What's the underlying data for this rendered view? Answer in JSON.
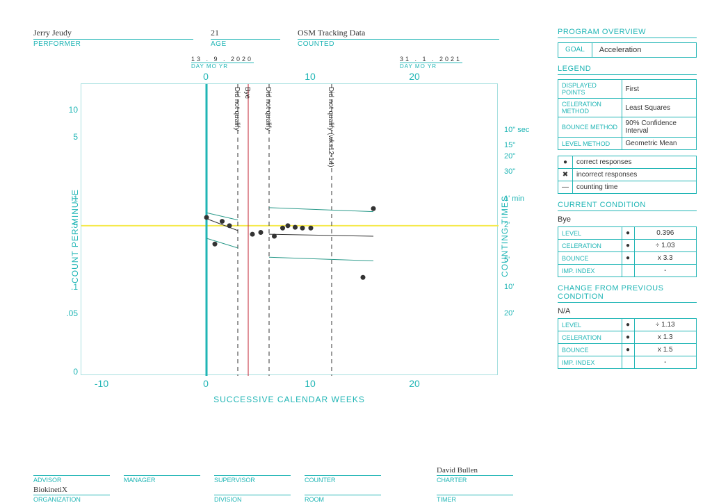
{
  "header": {
    "performer": {
      "value": "Jerry Jeudy",
      "label": "PERFORMER"
    },
    "age": {
      "value": "21",
      "label": "AGE"
    },
    "counted": {
      "value": "OSM Tracking Data",
      "label": "COUNTED"
    }
  },
  "sidebar": {
    "program_overview": "PROGRAM OVERVIEW",
    "goal_label": "GOAL",
    "goal_value": "Acceleration",
    "legend_title": "LEGEND",
    "legend_rows": [
      {
        "k": "DISPLAYED POINTS",
        "v": "First"
      },
      {
        "k": "CELERATION METHOD",
        "v": "Least Squares"
      },
      {
        "k": "BOUNCE METHOD",
        "v": "90% Confidence Interval"
      },
      {
        "k": "LEVEL METHOD",
        "v": "Geometric Mean"
      }
    ],
    "symbol_rows": [
      {
        "sym": "●",
        "v": "correct responses"
      },
      {
        "sym": "✖",
        "v": "incorrect responses"
      },
      {
        "sym": "—",
        "v": "counting time"
      }
    ],
    "cc_title": "CURRENT CONDITION",
    "cc_name": "Bye",
    "cc_rows": [
      {
        "k": "LEVEL",
        "sym": "●",
        "v": "0.396"
      },
      {
        "k": "CELERATION",
        "sym": "●",
        "v": "÷ 1.03"
      },
      {
        "k": "BOUNCE",
        "sym": "●",
        "v": "x 3.3"
      },
      {
        "k": "IMP. INDEX",
        "sym": "",
        "v": "-"
      }
    ],
    "change_title": "CHANGE FROM PREVIOUS CONDITION",
    "change_name": "N/A",
    "change_rows": [
      {
        "k": "LEVEL",
        "sym": "●",
        "v": "÷ 1.13"
      },
      {
        "k": "CELERATION",
        "sym": "●",
        "v": "x 1.3"
      },
      {
        "k": "BOUNCE",
        "sym": "●",
        "v": "x 1.5"
      },
      {
        "k": "IMP. INDEX",
        "sym": "",
        "v": "-"
      }
    ]
  },
  "footer": {
    "row1": [
      {
        "l": "ADVISOR",
        "v": ""
      },
      {
        "l": "MANAGER",
        "v": ""
      },
      {
        "l": "SUPERVISOR",
        "v": ""
      },
      {
        "l": "COUNTER",
        "v": ""
      },
      {
        "l": "CHARTER",
        "v": "David Bullen"
      }
    ],
    "row2": [
      {
        "l": "ORGANIZATION",
        "v": "BiokinetiX"
      },
      {
        "l": "",
        "v": ""
      },
      {
        "l": "DIVISION",
        "v": ""
      },
      {
        "l": "ROOM",
        "v": ""
      },
      {
        "l": "TIMER",
        "v": ""
      }
    ]
  },
  "chart": {
    "y_label": "COUNT PER MINUTE",
    "y2_label": "COUNTING TIMES",
    "x_label": "SUCCESSIVE CALENDAR WEEKS",
    "x_min": -12,
    "x_max": 28,
    "x_ticks": [
      {
        "x": -10,
        "l": "-10"
      },
      {
        "x": 0,
        "l": "0"
      },
      {
        "x": 10,
        "l": "10"
      },
      {
        "x": 20,
        "l": "20"
      }
    ],
    "y_ticks": [
      {
        "y": 0.01,
        "l": "0"
      },
      {
        "y": 0.05,
        "l": ".05"
      },
      {
        "y": 0.1,
        "l": ".1"
      },
      {
        "y": 0.5,
        "l": ".5"
      },
      {
        "y": 1,
        "l": "1"
      },
      {
        "y": 5,
        "l": "5"
      },
      {
        "y": 10,
        "l": "10"
      }
    ],
    "y2_ticks": [
      {
        "y": 6,
        "l": "10\" sec"
      },
      {
        "y": 4,
        "l": "15\""
      },
      {
        "y": 3,
        "l": "20\""
      },
      {
        "y": 2,
        "l": "30\""
      },
      {
        "y": 1,
        "l": "1' min"
      },
      {
        "y": 0.5,
        "l": "2'"
      },
      {
        "y": 0.2,
        "l": "5'"
      },
      {
        "y": 0.1,
        "l": "10'"
      },
      {
        "y": 0.05,
        "l": "20'"
      }
    ],
    "log_min": 0.01,
    "log_max": 20,
    "dates": [
      {
        "x": 0,
        "d": "13 . 9 . 2020",
        "u": "DAY   MO      YR"
      },
      {
        "x": 20,
        "d": "31 . 1 . 2021",
        "u": "DAY   MO      YR"
      }
    ],
    "phase_lines": [
      {
        "x": 0,
        "color": "#1fb5b5",
        "w": 3,
        "dash": false
      },
      {
        "x": 3,
        "color": "#333",
        "w": 1,
        "dash": true,
        "label": "Did not qualify"
      },
      {
        "x": 4,
        "color": "#c02030",
        "w": 1,
        "dash": false,
        "label": "Bye"
      },
      {
        "x": 6,
        "color": "#333",
        "w": 1,
        "dash": true,
        "label": "Did not qualify"
      },
      {
        "x": 12,
        "color": "#333",
        "w": 1,
        "dash": true,
        "label": "Did not qualify (wks12-14)"
      }
    ],
    "points": [
      {
        "x": 0,
        "y": 0.62
      },
      {
        "x": 0.8,
        "y": 0.31
      },
      {
        "x": 1.5,
        "y": 0.56
      },
      {
        "x": 2.2,
        "y": 0.5
      },
      {
        "x": 4.4,
        "y": 0.4
      },
      {
        "x": 5.2,
        "y": 0.42
      },
      {
        "x": 6.5,
        "y": 0.38
      },
      {
        "x": 7.3,
        "y": 0.47
      },
      {
        "x": 7.8,
        "y": 0.5
      },
      {
        "x": 8.5,
        "y": 0.48
      },
      {
        "x": 9.2,
        "y": 0.47
      },
      {
        "x": 10,
        "y": 0.47
      },
      {
        "x": 15,
        "y": 0.13
      },
      {
        "x": 16,
        "y": 0.78
      }
    ],
    "yellow_line": {
      "y": 0.5,
      "color": "#f5e94a",
      "w": 2
    },
    "trend_lines": [
      {
        "x1": 0,
        "y1": 0.6,
        "x2": 3,
        "y2": 0.44,
        "color": "#333",
        "w": 1
      },
      {
        "x1": 0,
        "y1": 0.7,
        "x2": 3,
        "y2": 0.58,
        "color": "#2a9a8a",
        "w": 1
      },
      {
        "x1": 0,
        "y1": 0.36,
        "x2": 3,
        "y2": 0.28,
        "color": "#2a9a8a",
        "w": 1
      },
      {
        "x1": 6,
        "y1": 0.4,
        "x2": 16,
        "y2": 0.38,
        "color": "#333",
        "w": 1
      },
      {
        "x1": 6,
        "y1": 0.8,
        "x2": 16,
        "y2": 0.72,
        "color": "#2a9a8a",
        "w": 1
      },
      {
        "x1": 6,
        "y1": 0.22,
        "x2": 16,
        "y2": 0.2,
        "color": "#2a9a8a",
        "w": 1
      }
    ],
    "colors": {
      "axis": "#1fb5b5",
      "point": "#333",
      "bg": "#fff"
    }
  }
}
